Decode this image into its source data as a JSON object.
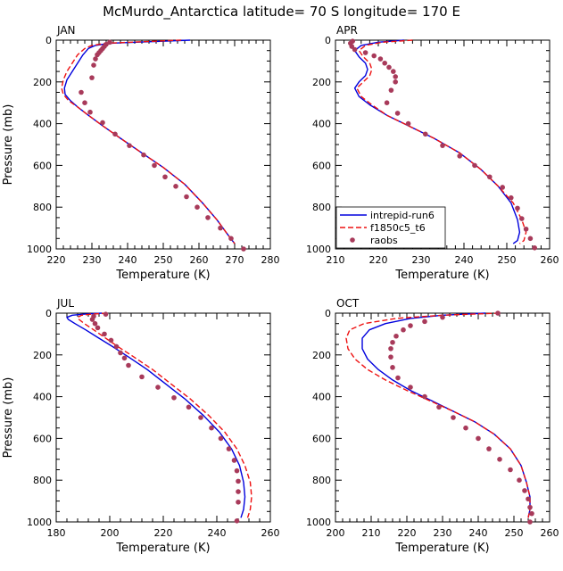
{
  "figure": {
    "title": "McMurdo_Antarctica  latitude= 70 S longitude= 170 E"
  },
  "colors": {
    "intrepid": "#0000dd",
    "f1850": "#ee1111",
    "raobs": "#a83a5a"
  },
  "chart_data": [
    {
      "type": "line",
      "panel": "JAN",
      "xlabel": "Temperature (K)",
      "ylabel": "Pressure (mb)",
      "xlim": [
        220,
        280
      ],
      "ylim": [
        1000,
        0
      ],
      "xticks": [
        220,
        230,
        240,
        250,
        260,
        270,
        280
      ],
      "yticks": [
        0,
        200,
        400,
        600,
        800,
        1000
      ],
      "series": [
        {
          "key": "intrepid",
          "style": "solid",
          "x": [
            257.5,
            245,
            235,
            231,
            229,
            227.5,
            226,
            224.5,
            223,
            222.3,
            222.5,
            224,
            226,
            229,
            233,
            238,
            244,
            250,
            256,
            261,
            265,
            268,
            270
          ],
          "y": [
            0,
            8,
            15,
            25,
            40,
            70,
            110,
            150,
            190,
            230,
            260,
            290,
            320,
            360,
            410,
            470,
            540,
            610,
            690,
            780,
            860,
            930,
            975
          ]
        },
        {
          "key": "f1850",
          "style": "dashed",
          "x": [
            255,
            243,
            234,
            230,
            228,
            226,
            224.5,
            223,
            222,
            221.5,
            222,
            223.5,
            226,
            229,
            233,
            238,
            244,
            250,
            256,
            261,
            265,
            268,
            270
          ],
          "y": [
            0,
            8,
            15,
            25,
            40,
            70,
            110,
            150,
            190,
            230,
            260,
            290,
            320,
            360,
            410,
            470,
            540,
            610,
            690,
            780,
            860,
            930,
            975
          ]
        },
        {
          "key": "raobs",
          "style": "points",
          "x": [
            235,
            234,
            233.5,
            233,
            232.5,
            232,
            231.5,
            231,
            230.5,
            230,
            227,
            228,
            229.5,
            233,
            236.5,
            240.5,
            244.5,
            247.5,
            250.5,
            253.5,
            256.5,
            259.5,
            262.5,
            266,
            269,
            272.5
          ],
          "y": [
            10,
            20,
            30,
            40,
            50,
            60,
            70,
            90,
            120,
            180,
            250,
            300,
            345,
            395,
            450,
            505,
            550,
            600,
            655,
            700,
            750,
            800,
            850,
            900,
            950,
            1000
          ]
        }
      ]
    },
    {
      "type": "line",
      "panel": "APR",
      "xlabel": "Temperature (K)",
      "ylabel": "",
      "xlim": [
        210,
        260
      ],
      "ylim": [
        1000,
        0
      ],
      "xticks": [
        210,
        220,
        230,
        240,
        250,
        260
      ],
      "yticks": [
        0,
        200,
        400,
        600,
        800,
        1000
      ],
      "legend": {
        "entries": [
          "intrepid-run6",
          "f1850c5_t6",
          "raobs"
        ],
        "placement": "bottom-left"
      },
      "series": [
        {
          "key": "intrepid",
          "style": "solid",
          "x": [
            226,
            220,
            216,
            214.5,
            215.5,
            217,
            217.5,
            217,
            215.5,
            214.5,
            215.5,
            218,
            222,
            227,
            233,
            239,
            244,
            248,
            251,
            252.5,
            253,
            252.5,
            251.5
          ],
          "y": [
            0,
            10,
            25,
            50,
            80,
            110,
            140,
            170,
            200,
            230,
            270,
            310,
            360,
            410,
            470,
            540,
            620,
            700,
            780,
            860,
            920,
            960,
            975
          ]
        },
        {
          "key": "f1850",
          "style": "dashed",
          "x": [
            228,
            221,
            217,
            215.5,
            216.5,
            218,
            218.5,
            218,
            216.5,
            215,
            216,
            218.5,
            222,
            227,
            233,
            239,
            244,
            248,
            251.5,
            253.5,
            254.5,
            254,
            253
          ],
          "y": [
            0,
            10,
            25,
            50,
            80,
            110,
            140,
            170,
            200,
            230,
            270,
            310,
            360,
            410,
            470,
            540,
            620,
            700,
            780,
            860,
            920,
            960,
            975
          ]
        },
        {
          "key": "raobs",
          "style": "points",
          "x": [
            214,
            213.5,
            213.8,
            214.5,
            217,
            219,
            220.5,
            221.5,
            222.5,
            223.5,
            224,
            224,
            223,
            222,
            224.5,
            227,
            231,
            235,
            239,
            242.5,
            246,
            249,
            251,
            252.5,
            253.5,
            254.5,
            255.5,
            256.5
          ],
          "y": [
            5,
            15,
            30,
            45,
            60,
            75,
            90,
            110,
            130,
            150,
            175,
            200,
            240,
            300,
            350,
            400,
            450,
            505,
            555,
            600,
            655,
            705,
            755,
            805,
            855,
            905,
            950,
            995
          ]
        }
      ]
    },
    {
      "type": "line",
      "panel": "JUL",
      "xlabel": "Temperature (K)",
      "ylabel": "Pressure (mb)",
      "xlim": [
        180,
        260
      ],
      "ylim": [
        1000,
        0
      ],
      "xticks": [
        180,
        200,
        220,
        240,
        260
      ],
      "yticks": [
        0,
        200,
        400,
        600,
        800,
        1000
      ],
      "series": [
        {
          "key": "intrepid",
          "style": "solid",
          "x": [
            197,
            190,
            186,
            184,
            184.5,
            187,
            191,
            196,
            201,
            207,
            214,
            221,
            228,
            235,
            241,
            245.5,
            248.5,
            250,
            250.5,
            250,
            249
          ],
          "y": [
            0,
            5,
            10,
            20,
            30,
            50,
            80,
            120,
            160,
            210,
            270,
            340,
            410,
            490,
            570,
            650,
            730,
            810,
            880,
            940,
            980
          ]
        },
        {
          "key": "f1850",
          "style": "dashed",
          "x": [
            199,
            193,
            189.5,
            188,
            188.5,
            190.5,
            194,
            198.5,
            203,
            209,
            216,
            223,
            230,
            237,
            243,
            247.5,
            250.5,
            252.5,
            253,
            252.5,
            251.5
          ],
          "y": [
            0,
            5,
            10,
            20,
            30,
            50,
            80,
            120,
            160,
            210,
            270,
            340,
            410,
            490,
            570,
            650,
            730,
            810,
            880,
            940,
            980
          ]
        },
        {
          "key": "raobs",
          "style": "points",
          "x": [
            198.5,
            194,
            193.5,
            194.5,
            195.5,
            198,
            200.5,
            202.5,
            204,
            205.5,
            207,
            212,
            218,
            224,
            229.5,
            234,
            238,
            241.5,
            244.5,
            246.5,
            247.5,
            248,
            248,
            248,
            247.5
          ],
          "y": [
            5,
            15,
            30,
            50,
            70,
            100,
            130,
            160,
            190,
            215,
            250,
            305,
            355,
            405,
            450,
            500,
            550,
            600,
            650,
            705,
            755,
            805,
            855,
            905,
            995
          ]
        }
      ]
    },
    {
      "type": "line",
      "panel": "OCT",
      "xlabel": "Temperature (K)",
      "ylabel": "",
      "xlim": [
        200,
        260
      ],
      "ylim": [
        1000,
        0
      ],
      "xticks": [
        200,
        210,
        220,
        230,
        240,
        250,
        260
      ],
      "yticks": [
        0,
        200,
        400,
        600,
        800,
        1000
      ],
      "series": [
        {
          "key": "intrepid",
          "style": "solid",
          "x": [
            242,
            230,
            221,
            214,
            209.5,
            207.5,
            207.5,
            209,
            212,
            216,
            221,
            227,
            233,
            239,
            244.5,
            249,
            252,
            253.5,
            254.5,
            254.5,
            254
          ],
          "y": [
            0,
            10,
            25,
            50,
            80,
            120,
            170,
            220,
            270,
            320,
            370,
            420,
            470,
            520,
            580,
            650,
            730,
            810,
            880,
            940,
            980
          ]
        },
        {
          "key": "f1850",
          "style": "dashed",
          "x": [
            246,
            230,
            217,
            208,
            204,
            203,
            203.5,
            205.5,
            209,
            214,
            220,
            226.5,
            233,
            239,
            244.5,
            249,
            252,
            253.5,
            254.5,
            254.5,
            254
          ],
          "y": [
            0,
            10,
            25,
            50,
            80,
            120,
            170,
            220,
            270,
            320,
            370,
            420,
            470,
            520,
            580,
            650,
            730,
            810,
            880,
            940,
            980
          ]
        },
        {
          "key": "raobs",
          "style": "points",
          "x": [
            245.5,
            230,
            225,
            221,
            219,
            217,
            216,
            215.5,
            215.5,
            216,
            217.5,
            221,
            225,
            229,
            233,
            236.5,
            240,
            243,
            246,
            249,
            251.5,
            253,
            254,
            254.5,
            255,
            254.5
          ],
          "y": [
            0,
            20,
            40,
            60,
            80,
            110,
            140,
            170,
            210,
            260,
            310,
            355,
            400,
            450,
            500,
            550,
            600,
            650,
            700,
            750,
            800,
            850,
            890,
            930,
            960,
            1000
          ]
        }
      ]
    }
  ]
}
